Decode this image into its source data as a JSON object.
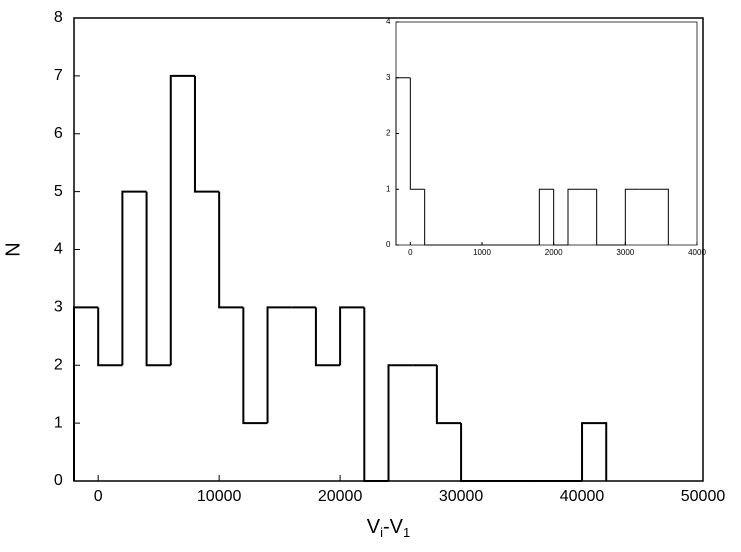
{
  "chart_data": [
    {
      "type": "histogram",
      "bins": [
        -2000,
        0,
        2000,
        4000,
        6000,
        8000,
        10000,
        12000,
        14000,
        16000,
        18000,
        20000,
        22000,
        24000,
        26000,
        28000,
        30000,
        32000,
        34000,
        36000,
        38000,
        40000,
        42000
      ],
      "counts": [
        3,
        2,
        5,
        2,
        7,
        5,
        3,
        1,
        3,
        3,
        2,
        3,
        0,
        2,
        2,
        1,
        0,
        0,
        0,
        0,
        0,
        1
      ],
      "color": "#000000",
      "xlim": [
        -2000,
        50000
      ],
      "xticks": [
        0,
        10000,
        20000,
        30000,
        40000,
        50000
      ],
      "ylim": [
        0,
        8
      ],
      "yticks": [
        0,
        1,
        2,
        3,
        4,
        5,
        6,
        7,
        8
      ],
      "y_label": "N",
      "x_label_parts": [
        "V",
        "i",
        "-V",
        "1"
      ]
    },
    {
      "type": "histogram",
      "bins": [
        -200,
        0,
        200,
        400,
        600,
        800,
        1000,
        1200,
        1400,
        1600,
        1800,
        2000,
        2200,
        2400,
        2600,
        2800,
        3000,
        3200,
        3400,
        3600
      ],
      "counts": [
        3,
        1,
        0,
        0,
        0,
        0,
        0,
        0,
        0,
        0,
        1,
        0,
        1,
        1,
        0,
        0,
        1,
        1,
        1
      ],
      "color": "#000000",
      "xlim": [
        -200,
        4000
      ],
      "xticks": [
        0,
        1000,
        2000,
        3000,
        4000
      ],
      "ylim": [
        0,
        4
      ],
      "yticks": [
        0,
        1,
        2,
        3,
        4
      ]
    }
  ]
}
